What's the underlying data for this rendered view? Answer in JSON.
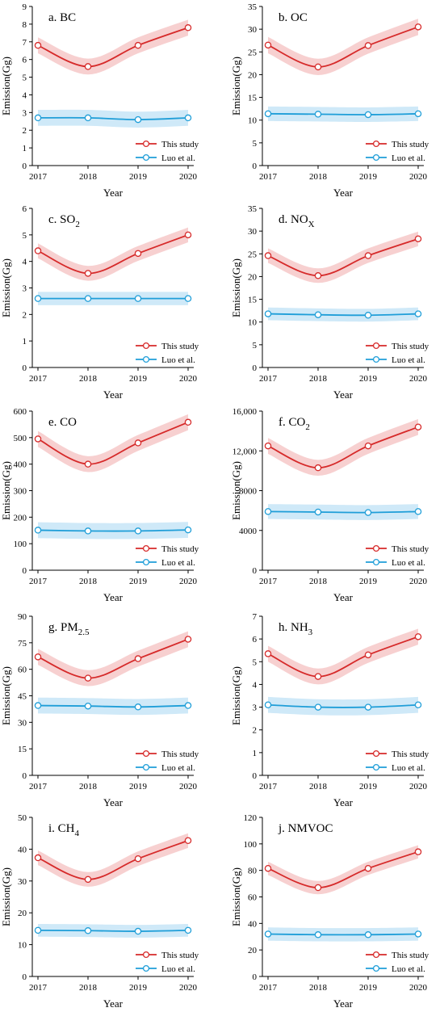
{
  "chart_data": [
    {
      "type": "line",
      "panel": "a",
      "title": "a. BC",
      "title_sub": "",
      "title_suffix": "",
      "xlabel": "Year",
      "ylabel": "Emission(Gg)",
      "x": [
        2017,
        2018,
        2019,
        2020
      ],
      "ylim": [
        0,
        9
      ],
      "yticks": [
        "0",
        "1",
        "2",
        "3",
        "4",
        "5",
        "6",
        "7",
        "8",
        "9"
      ],
      "ytick_values": [
        0,
        1,
        2,
        3,
        4,
        5,
        6,
        7,
        8,
        9
      ],
      "series": [
        {
          "name": "This study",
          "values": [
            6.8,
            5.6,
            6.8,
            7.8
          ],
          "band": 0.45
        },
        {
          "name": "Luo et al.",
          "values": [
            2.7,
            2.7,
            2.6,
            2.7
          ],
          "band": 0.45
        }
      ]
    },
    {
      "type": "line",
      "panel": "b",
      "title": "b. OC",
      "title_sub": "",
      "title_suffix": "",
      "xlabel": "Year",
      "ylabel": "Emission(Gg)",
      "x": [
        2017,
        2018,
        2019,
        2020
      ],
      "ylim": [
        0,
        35
      ],
      "yticks": [
        "0",
        "5",
        "10",
        "15",
        "20",
        "25",
        "30",
        "35"
      ],
      "ytick_values": [
        0,
        5,
        10,
        15,
        20,
        25,
        30,
        35
      ],
      "series": [
        {
          "name": "This study",
          "values": [
            26.5,
            21.7,
            26.4,
            30.5
          ],
          "band": 1.8
        },
        {
          "name": "Luo et al.",
          "values": [
            11.4,
            11.3,
            11.2,
            11.4
          ],
          "band": 1.6
        }
      ]
    },
    {
      "type": "line",
      "panel": "c",
      "title": "c. SO",
      "title_sub": "2",
      "title_suffix": "",
      "xlabel": "Year",
      "ylabel": "Emission(Gg)",
      "x": [
        2017,
        2018,
        2019,
        2020
      ],
      "ylim": [
        0,
        6
      ],
      "yticks": [
        "0",
        "1",
        "2",
        "3",
        "4",
        "5",
        "6"
      ],
      "ytick_values": [
        0,
        1,
        2,
        3,
        4,
        5,
        6
      ],
      "series": [
        {
          "name": "This study",
          "values": [
            4.4,
            3.55,
            4.3,
            5.0
          ],
          "band": 0.28
        },
        {
          "name": "Luo et al.",
          "values": [
            2.6,
            2.6,
            2.6,
            2.6
          ],
          "band": 0.25
        }
      ]
    },
    {
      "type": "line",
      "panel": "d",
      "title": "d. NO",
      "title_sub": "X",
      "title_suffix": "",
      "xlabel": "Year",
      "ylabel": "Emission(Gg)",
      "x": [
        2017,
        2018,
        2019,
        2020
      ],
      "ylim": [
        0,
        35
      ],
      "yticks": [
        "0",
        "5",
        "10",
        "15",
        "20",
        "25",
        "30",
        "35"
      ],
      "ytick_values": [
        0,
        5,
        10,
        15,
        20,
        25,
        30,
        35
      ],
      "series": [
        {
          "name": "This study",
          "values": [
            24.6,
            20.2,
            24.6,
            28.3
          ],
          "band": 1.6
        },
        {
          "name": "Luo et al.",
          "values": [
            11.8,
            11.6,
            11.5,
            11.8
          ],
          "band": 1.4
        }
      ]
    },
    {
      "type": "line",
      "panel": "e",
      "title": "e. CO",
      "title_sub": "",
      "title_suffix": "",
      "xlabel": "Year",
      "ylabel": "Emission(Gg)",
      "x": [
        2017,
        2018,
        2019,
        2020
      ],
      "ylim": [
        0,
        600
      ],
      "yticks": [
        "0",
        "100",
        "200",
        "300",
        "400",
        "500",
        "600"
      ],
      "ytick_values": [
        0,
        100,
        200,
        300,
        400,
        500,
        600
      ],
      "series": [
        {
          "name": "This study",
          "values": [
            495,
            400,
            480,
            558
          ],
          "band": 30
        },
        {
          "name": "Luo et al.",
          "values": [
            151,
            148,
            148,
            152
          ],
          "band": 30
        }
      ]
    },
    {
      "type": "line",
      "panel": "f",
      "title": "f. CO",
      "title_sub": "2",
      "title_suffix": "",
      "xlabel": "Year",
      "ylabel": "Emission(Gg)",
      "x": [
        2017,
        2018,
        2019,
        2020
      ],
      "ylim": [
        0,
        16000
      ],
      "yticks": [
        "0",
        "4000",
        "8000",
        "12,000",
        "16,000"
      ],
      "ytick_values": [
        0,
        4000,
        8000,
        12000,
        16000
      ],
      "series": [
        {
          "name": "This study",
          "values": [
            12500,
            10300,
            12500,
            14400
          ],
          "band": 800
        },
        {
          "name": "Luo et al.",
          "values": [
            5900,
            5850,
            5800,
            5900
          ],
          "band": 750
        }
      ]
    },
    {
      "type": "line",
      "panel": "g",
      "title": "g. PM",
      "title_sub": "2.5",
      "title_suffix": "",
      "xlabel": "Year",
      "ylabel": "Emission(Gg)",
      "x": [
        2017,
        2018,
        2019,
        2020
      ],
      "ylim": [
        0,
        90
      ],
      "yticks": [
        "0",
        "15",
        "30",
        "45",
        "60",
        "75",
        "90"
      ],
      "ytick_values": [
        0,
        15,
        30,
        45,
        60,
        75,
        90
      ],
      "series": [
        {
          "name": "This study",
          "values": [
            67,
            55,
            66,
            77
          ],
          "band": 4.5
        },
        {
          "name": "Luo et al.",
          "values": [
            39.5,
            39.2,
            38.7,
            39.5
          ],
          "band": 4.5
        }
      ]
    },
    {
      "type": "line",
      "panel": "h",
      "title": "h. NH",
      "title_sub": "3",
      "title_suffix": "",
      "xlabel": "Year",
      "ylabel": "Emission(Gg)",
      "x": [
        2017,
        2018,
        2019,
        2020
      ],
      "ylim": [
        0,
        7
      ],
      "yticks": [
        "0",
        "1",
        "2",
        "3",
        "4",
        "5",
        "6",
        "7"
      ],
      "ytick_values": [
        0,
        1,
        2,
        3,
        4,
        5,
        6,
        7
      ],
      "series": [
        {
          "name": "This study",
          "values": [
            5.35,
            4.35,
            5.3,
            6.1
          ],
          "band": 0.35
        },
        {
          "name": "Luo et al.",
          "values": [
            3.1,
            3.0,
            3.0,
            3.1
          ],
          "band": 0.35
        }
      ]
    },
    {
      "type": "line",
      "panel": "i",
      "title": "i. CH",
      "title_sub": "4",
      "title_suffix": "",
      "xlabel": "Year",
      "ylabel": "Emission(Gg)",
      "x": [
        2017,
        2018,
        2019,
        2020
      ],
      "ylim": [
        0,
        50
      ],
      "yticks": [
        "0",
        "10",
        "20",
        "30",
        "40",
        "50"
      ],
      "ytick_values": [
        0,
        10,
        20,
        30,
        40,
        50
      ],
      "series": [
        {
          "name": "This study",
          "values": [
            37.3,
            30.5,
            37.0,
            42.7
          ],
          "band": 2.3
        },
        {
          "name": "Luo et al.",
          "values": [
            14.5,
            14.4,
            14.2,
            14.5
          ],
          "band": 2.0
        }
      ]
    },
    {
      "type": "line",
      "panel": "j",
      "title": "j. NMVOC",
      "title_sub": "",
      "title_suffix": "",
      "xlabel": "Year",
      "ylabel": "Emission(Gg)",
      "x": [
        2017,
        2018,
        2019,
        2020
      ],
      "ylim": [
        0,
        120
      ],
      "yticks": [
        "0",
        "20",
        "40",
        "60",
        "80",
        "100",
        "120"
      ],
      "ytick_values": [
        0,
        20,
        40,
        60,
        80,
        100,
        120
      ],
      "series": [
        {
          "name": "This study",
          "values": [
            81.5,
            67,
            81.5,
            94
          ],
          "band": 5
        },
        {
          "name": "Luo et al.",
          "values": [
            32,
            31.5,
            31.5,
            32
          ],
          "band": 5
        }
      ]
    }
  ],
  "colors": {
    "this_study": "#d62a2a",
    "this_study_band": "#f7d0d0",
    "luo": "#1f9ed8",
    "luo_band": "#cfe9f8",
    "axis": "#000000"
  }
}
